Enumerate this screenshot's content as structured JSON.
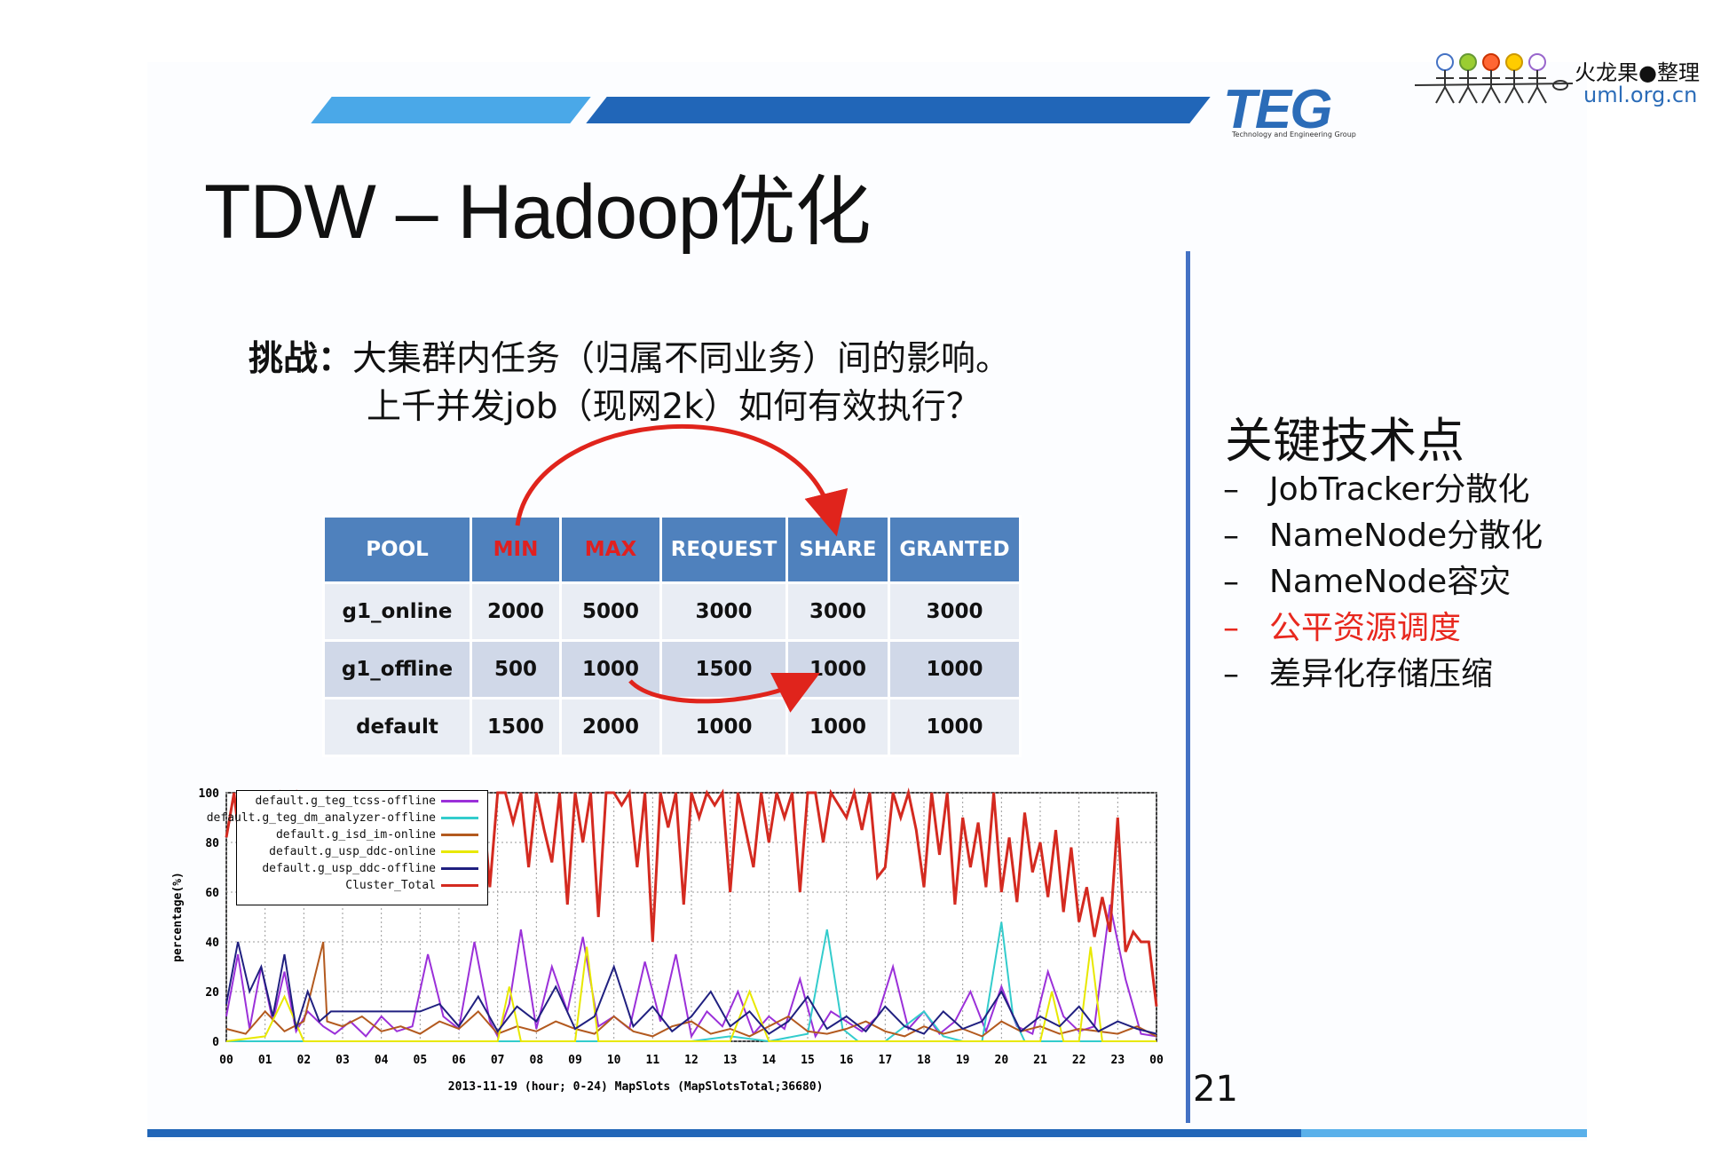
{
  "slide": {
    "title": "TDW – Hadoop优化",
    "page_number": "21"
  },
  "logo": {
    "teg": "TEG",
    "teg_subtitle": "Technology and Engineering Group",
    "brand_line1": "火龙果●整理",
    "brand_line2": "uml.org.cn"
  },
  "challenge": {
    "label": "挑战：",
    "line1": "大集群内任务（归属不同业务）间的影响。",
    "line2": "上千并发job（现网2k）如何有效执行？"
  },
  "pool_table": {
    "headers": [
      "POOL",
      "MIN",
      "MAX",
      "REQUEST",
      "SHARE",
      "GRANTED"
    ],
    "rows": [
      [
        "g1_online",
        "2000",
        "5000",
        "3000",
        "3000",
        "3000"
      ],
      [
        "g1_offline",
        "500",
        "1000",
        "1500",
        "1000",
        "1000"
      ],
      [
        "default",
        "1500",
        "2000",
        "1000",
        "1000",
        "1000"
      ]
    ]
  },
  "key_points": {
    "title": "关键技术点",
    "items": [
      {
        "dash": "–",
        "text": "JobTracker分散化"
      },
      {
        "dash": "–",
        "text": "NameNode分散化"
      },
      {
        "dash": "–",
        "text": "NameNode容灾"
      },
      {
        "dash": "–",
        "text": "公平资源调度"
      },
      {
        "dash": "–",
        "text": "差异化存储压缩"
      }
    ],
    "highlight_color": "#e8281e"
  },
  "chart_data": {
    "type": "line",
    "ylabel": "percentage(%)",
    "xlabel": "2013-11-19 (hour; 0-24) MapSlots (MapSlotsTotal;36680)",
    "ylim": [
      0,
      100
    ],
    "xlim": [
      0,
      24
    ],
    "yticks": [
      "0",
      "20",
      "40",
      "60",
      "80",
      "100"
    ],
    "xticks": [
      "00",
      "01",
      "02",
      "03",
      "04",
      "05",
      "06",
      "07",
      "08",
      "09",
      "10",
      "11",
      "12",
      "13",
      "14",
      "15",
      "16",
      "17",
      "18",
      "19",
      "20",
      "21",
      "22",
      "23",
      "00"
    ],
    "grid": true,
    "legend_position": "top-left",
    "series": [
      {
        "name": "default.g_teg_tcss-offline",
        "color": "#9b30d9",
        "x": [
          0,
          0.3,
          0.6,
          0.9,
          1.2,
          1.5,
          1.8,
          2.1,
          2.5,
          2.8,
          3.2,
          3.6,
          4.0,
          4.4,
          4.8,
          5.2,
          5.6,
          6.0,
          6.4,
          6.8,
          7.0,
          7.3,
          7.6,
          8.0,
          8.4,
          8.8,
          9.2,
          9.6,
          10.0,
          10.4,
          10.8,
          11.2,
          11.6,
          12.0,
          12.4,
          12.8,
          13.2,
          13.6,
          14.0,
          14.4,
          14.8,
          15.2,
          15.6,
          16.0,
          16.4,
          16.8,
          17.2,
          17.6,
          18.0,
          18.4,
          18.8,
          19.2,
          19.6,
          20.0,
          20.4,
          20.8,
          21.2,
          21.6,
          22.0,
          22.4,
          22.8,
          23.2,
          23.6,
          24.0
        ],
        "y": [
          10,
          35,
          5,
          30,
          8,
          28,
          4,
          12,
          6,
          3,
          8,
          2,
          10,
          4,
          6,
          35,
          10,
          5,
          40,
          8,
          2,
          15,
          45,
          5,
          30,
          12,
          42,
          6,
          10,
          5,
          32,
          8,
          35,
          2,
          12,
          6,
          20,
          3,
          10,
          5,
          25,
          2,
          12,
          8,
          4,
          10,
          30,
          5,
          12,
          3,
          8,
          20,
          4,
          22,
          6,
          3,
          28,
          10,
          4,
          6,
          55,
          25,
          3,
          2
        ]
      },
      {
        "name": "default.g_teg_dm_analyzer-offline",
        "color": "#33cccc",
        "x": [
          0,
          1,
          2,
          3,
          4,
          5,
          6,
          7,
          8,
          9,
          10,
          11,
          12,
          13,
          14,
          15,
          15.5,
          15.9,
          16.3,
          17,
          18,
          18.5,
          19,
          19.5,
          20,
          20.3,
          20.6,
          21,
          22,
          23,
          24
        ],
        "y": [
          0,
          0,
          0,
          0,
          0,
          0,
          0,
          0,
          0,
          0,
          0,
          0,
          0,
          2,
          0,
          3,
          45,
          5,
          0,
          0,
          12,
          2,
          0,
          0,
          48,
          10,
          0,
          0,
          0,
          0,
          0
        ]
      },
      {
        "name": "default.g_isd_im-online",
        "color": "#b35a1f",
        "x": [
          0,
          0.5,
          1,
          1.5,
          2,
          2.5,
          2.6,
          3,
          3.5,
          4,
          4.5,
          5,
          5.5,
          6,
          6.5,
          7,
          7.5,
          8,
          8.5,
          9,
          9.5,
          10,
          10.5,
          11,
          11.5,
          12,
          12.5,
          13,
          13.5,
          14,
          14.5,
          15,
          15.5,
          16,
          16.5,
          17,
          17.5,
          18,
          18.5,
          19,
          19.5,
          20,
          20.5,
          21,
          21.5,
          22,
          22.5,
          23,
          23.5,
          24
        ],
        "y": [
          5,
          3,
          12,
          4,
          8,
          40,
          8,
          6,
          10,
          4,
          6,
          3,
          8,
          5,
          12,
          3,
          6,
          4,
          8,
          5,
          3,
          10,
          4,
          2,
          6,
          8,
          3,
          5,
          2,
          6,
          10,
          4,
          3,
          5,
          8,
          4,
          2,
          6,
          3,
          5,
          2,
          8,
          4,
          6,
          3,
          5,
          4,
          3,
          6,
          2
        ]
      },
      {
        "name": "default.g_usp_ddc-online",
        "color": "#e8e800",
        "x": [
          0,
          1,
          1.5,
          2,
          3,
          4,
          5,
          6,
          7,
          7.3,
          7.6,
          8,
          9,
          9.3,
          9.6,
          10,
          11,
          12,
          13,
          13.5,
          14,
          15,
          16,
          17,
          18,
          19,
          20,
          21,
          21.3,
          21.6,
          22,
          22.3,
          22.6,
          23,
          24
        ],
        "y": [
          0,
          2,
          18,
          0,
          0,
          0,
          0,
          0,
          0,
          22,
          0,
          0,
          0,
          38,
          0,
          0,
          0,
          0,
          0,
          20,
          0,
          0,
          0,
          0,
          0,
          0,
          0,
          0,
          20,
          0,
          0,
          38,
          0,
          0,
          0
        ]
      },
      {
        "name": "default.g_usp_ddc-offline",
        "color": "#202080",
        "x": [
          0,
          0.3,
          0.6,
          0.9,
          1.2,
          1.5,
          1.8,
          2.1,
          2.4,
          2.7,
          3,
          3.5,
          4,
          4.5,
          5,
          5.5,
          6,
          6.5,
          7,
          7.5,
          8,
          8.5,
          9,
          9.5,
          10,
          10.5,
          11,
          11.5,
          12,
          12.5,
          13,
          13.5,
          14,
          14.5,
          15,
          15.5,
          16,
          16.5,
          17,
          17.5,
          18,
          18.5,
          19,
          19.5,
          20,
          20.5,
          21,
          21.5,
          22,
          22.5,
          23,
          23.5,
          24
        ],
        "y": [
          15,
          40,
          20,
          30,
          10,
          35,
          5,
          20,
          8,
          12,
          12,
          12,
          12,
          12,
          12,
          15,
          6,
          18,
          4,
          14,
          8,
          22,
          5,
          10,
          30,
          6,
          14,
          4,
          10,
          20,
          6,
          12,
          3,
          8,
          18,
          5,
          10,
          4,
          14,
          6,
          3,
          12,
          5,
          8,
          20,
          4,
          10,
          6,
          14,
          4,
          8,
          5,
          3
        ]
      },
      {
        "name": "Cluster_Total",
        "color": "#d42a20",
        "x": [
          0,
          0.2,
          0.4,
          0.6,
          0.8,
          1.0,
          1.2,
          1.4,
          1.6,
          1.8,
          2.0,
          2.2,
          2.4,
          2.6,
          2.8,
          3.0,
          3.2,
          3.4,
          3.6,
          3.8,
          4.0,
          4.2,
          4.4,
          4.6,
          4.8,
          5.0,
          5.2,
          5.4,
          5.6,
          5.8,
          6.0,
          6.2,
          6.4,
          6.6,
          6.8,
          7.0,
          7.2,
          7.4,
          7.6,
          7.8,
          8.0,
          8.2,
          8.4,
          8.6,
          8.8,
          9.0,
          9.2,
          9.4,
          9.6,
          9.8,
          10.0,
          10.2,
          10.4,
          10.6,
          10.8,
          11.0,
          11.2,
          11.4,
          11.6,
          11.8,
          12.0,
          12.2,
          12.4,
          12.6,
          12.8,
          13.0,
          13.2,
          13.4,
          13.6,
          13.8,
          14.0,
          14.2,
          14.4,
          14.6,
          14.8,
          15.0,
          15.2,
          15.4,
          15.6,
          15.8,
          16.0,
          16.2,
          16.4,
          16.6,
          16.8,
          17.0,
          17.2,
          17.4,
          17.6,
          17.8,
          18.0,
          18.2,
          18.4,
          18.6,
          18.8,
          19.0,
          19.2,
          19.4,
          19.6,
          19.8,
          20.0,
          20.2,
          20.4,
          20.6,
          20.8,
          21.0,
          21.2,
          21.4,
          21.6,
          21.8,
          22.0,
          22.2,
          22.4,
          22.6,
          22.8,
          23.0,
          23.2,
          23.4,
          23.6,
          23.8,
          24.0
        ],
        "y": [
          82,
          100,
          72,
          100,
          55,
          98,
          90,
          100,
          95,
          100,
          88,
          70,
          60,
          58,
          62,
          68,
          75,
          70,
          66,
          72,
          64,
          70,
          100,
          78,
          90,
          85,
          100,
          100,
          60,
          100,
          100,
          100,
          85,
          100,
          62,
          100,
          100,
          88,
          100,
          70,
          100,
          85,
          72,
          100,
          55,
          100,
          80,
          100,
          50,
          100,
          100,
          95,
          100,
          70,
          100,
          40,
          100,
          86,
          100,
          55,
          100,
          90,
          100,
          95,
          100,
          60,
          100,
          85,
          70,
          100,
          80,
          100,
          90,
          100,
          60,
          100,
          100,
          80,
          100,
          95,
          90,
          100,
          85,
          100,
          66,
          70,
          100,
          90,
          100,
          85,
          62,
          100,
          75,
          100,
          55,
          90,
          70,
          88,
          62,
          100,
          60,
          82,
          56,
          92,
          68,
          80,
          58,
          85,
          52,
          78,
          48,
          62,
          42,
          58,
          44,
          90,
          36,
          44,
          40,
          40,
          14
        ]
      }
    ]
  }
}
